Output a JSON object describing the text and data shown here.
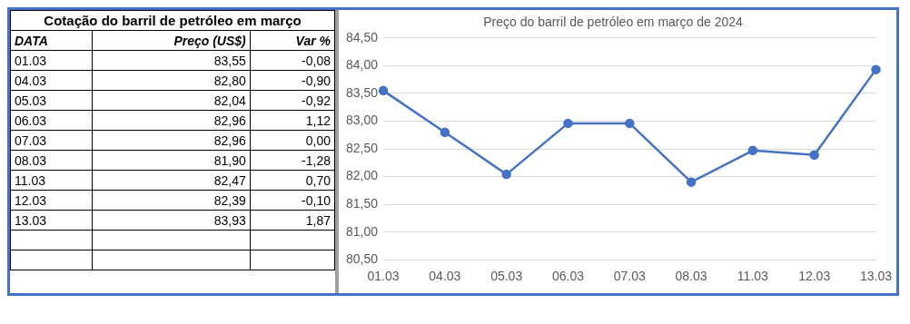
{
  "chart_data": [
    {
      "type": "other",
      "title": "Cotação do barril de petróleo em março",
      "xlabel": "DATA",
      "categories": [
        "01.03",
        "04.03",
        "05.03",
        "06.03",
        "07.03",
        "08.03",
        "11.03",
        "12.03",
        "13.03"
      ],
      "data_labels": true,
      "series": [
        {
          "name": "Preço (US$)",
          "values": [
            83.55,
            82.8,
            82.04,
            82.96,
            82.96,
            81.9,
            82.47,
            82.39,
            83.93
          ],
          "value_labels": [
            "83,55",
            "82,80",
            "82,04",
            "82,96",
            "82,96",
            "81,90",
            "82,47",
            "82,39",
            "83,93"
          ]
        },
        {
          "name": "Var %",
          "values": [
            -0.08,
            -0.9,
            -0.92,
            1.12,
            0.0,
            -1.28,
            0.7,
            -0.1,
            1.87
          ],
          "value_labels": [
            "-0,08",
            "-0,90",
            "-0,92",
            "1,12",
            "0,00",
            "-1,28",
            "0,70",
            "-0,10",
            "1,87"
          ]
        }
      ]
    },
    {
      "type": "line",
      "title": "Preço do barril de petróleo em março de 2024",
      "categories": [
        "01.03",
        "04.03",
        "05.03",
        "06.03",
        "07.03",
        "08.03",
        "11.03",
        "12.03",
        "13.03"
      ],
      "ylim": [
        80.5,
        84.5
      ],
      "yticks": [
        {
          "value": 80.5,
          "label": "80,50"
        },
        {
          "value": 81,
          "label": "81,00"
        },
        {
          "value": 81.5,
          "label": "81,50"
        },
        {
          "value": 82,
          "label": "82,00"
        },
        {
          "value": 82.5,
          "label": "82,50"
        },
        {
          "value": 83,
          "label": "83,00"
        },
        {
          "value": 83.5,
          "label": "83,50"
        },
        {
          "value": 84,
          "label": "84,00"
        },
        {
          "value": 84.5,
          "label": "84,50"
        }
      ],
      "grid": "y",
      "legend": false,
      "marker": "circle",
      "line_style": "solid",
      "series": [
        {
          "color": "#4472c4",
          "values": [
            83.55,
            82.8,
            82.04,
            82.96,
            82.96,
            81.9,
            82.47,
            82.39,
            83.93
          ]
        }
      ]
    }
  ]
}
